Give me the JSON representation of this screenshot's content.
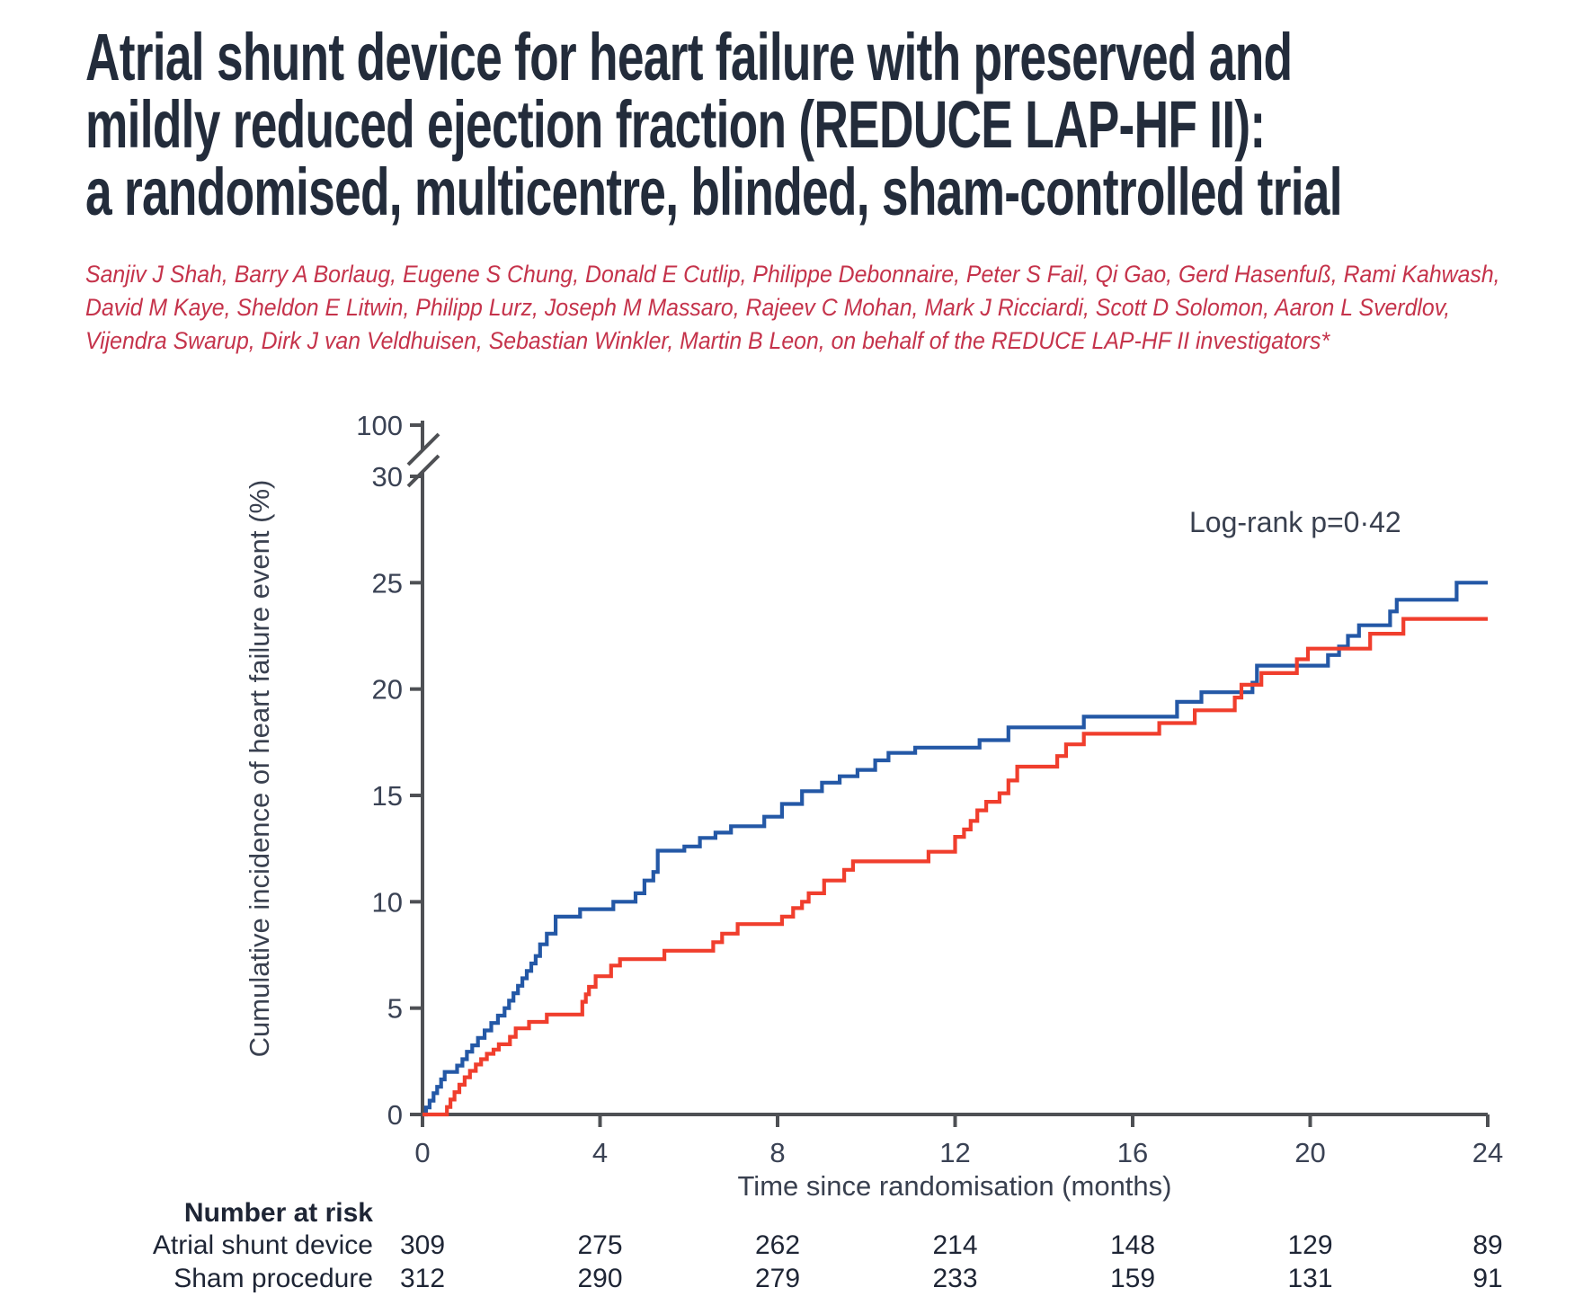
{
  "header": {
    "title_lines": [
      "Atrial shunt device for heart failure with preserved and",
      "mildly reduced ejection fraction (REDUCE LAP-HF II):",
      "a randomised, multicentre, blinded, sham-controlled trial"
    ],
    "title_color": "#232c3b",
    "authors_lines": [
      "Sanjiv J Shah, Barry A Borlaug, Eugene S Chung, Donald E Cutlip, Philippe Debonnaire, Peter S Fail, Qi Gao, Gerd Hasenfuß, Rami Kahwash,",
      "David M Kaye, Sheldon E Litwin, Philipp Lurz, Joseph M Massaro, Rajeev C Mohan, Mark J Ricciardi, Scott D Solomon, Aaron L Sverdlov,",
      "Vijendra Swarup, Dirk J van Veldhuisen, Sebastian Winkler, Martin B Leon, on behalf of the REDUCE LAP-HF II investigators*"
    ],
    "authors_color": "#c5334b"
  },
  "chart_data": {
    "type": "line",
    "subtype": "step-cumulative-incidence",
    "title": "",
    "xlabel": "Time since randomisation (months)",
    "ylabel": "Cumulative incidence of heart failure event (%)",
    "annotation": "Log-rank p=0·42",
    "x_ticks": [
      0,
      4,
      8,
      12,
      16,
      20,
      24
    ],
    "y_ticks": [
      0,
      5,
      10,
      15,
      20,
      25,
      30,
      100
    ],
    "y_axis_break_between": [
      30,
      100
    ],
    "xlim": [
      0,
      24
    ],
    "ylim_displayed": [
      0,
      30
    ],
    "grid": false,
    "legend": "none",
    "axis_color": "#4e5054",
    "series": [
      {
        "name": "Atrial shunt device",
        "color": "#2458a6",
        "points": [
          [
            0,
            0
          ],
          [
            0.08,
            0.33
          ],
          [
            0.16,
            0.65
          ],
          [
            0.25,
            1.0
          ],
          [
            0.33,
            1.3
          ],
          [
            0.42,
            1.65
          ],
          [
            0.5,
            2.0
          ],
          [
            0.78,
            2.3
          ],
          [
            0.9,
            2.6
          ],
          [
            1.0,
            2.95
          ],
          [
            1.12,
            3.25
          ],
          [
            1.25,
            3.6
          ],
          [
            1.4,
            3.95
          ],
          [
            1.55,
            4.3
          ],
          [
            1.7,
            4.65
          ],
          [
            1.85,
            5.0
          ],
          [
            1.95,
            5.35
          ],
          [
            2.05,
            5.7
          ],
          [
            2.15,
            6.05
          ],
          [
            2.25,
            6.4
          ],
          [
            2.35,
            6.75
          ],
          [
            2.45,
            7.1
          ],
          [
            2.55,
            7.45
          ],
          [
            2.65,
            8.0
          ],
          [
            2.8,
            8.5
          ],
          [
            3.0,
            9.3
          ],
          [
            3.55,
            9.65
          ],
          [
            4.3,
            10.0
          ],
          [
            4.8,
            10.4
          ],
          [
            5.0,
            11.0
          ],
          [
            5.2,
            11.4
          ],
          [
            5.3,
            12.4
          ],
          [
            5.9,
            12.6
          ],
          [
            6.25,
            13.0
          ],
          [
            6.6,
            13.25
          ],
          [
            6.95,
            13.55
          ],
          [
            7.7,
            14.0
          ],
          [
            8.1,
            14.6
          ],
          [
            8.55,
            15.2
          ],
          [
            9.0,
            15.6
          ],
          [
            9.4,
            15.9
          ],
          [
            9.8,
            16.2
          ],
          [
            10.2,
            16.65
          ],
          [
            10.5,
            17.0
          ],
          [
            11.1,
            17.25
          ],
          [
            12.55,
            17.6
          ],
          [
            13.2,
            18.2
          ],
          [
            14.9,
            18.7
          ],
          [
            17.0,
            19.4
          ],
          [
            17.55,
            19.85
          ],
          [
            18.7,
            20.3
          ],
          [
            18.8,
            21.1
          ],
          [
            20.4,
            21.6
          ],
          [
            20.65,
            22.0
          ],
          [
            20.85,
            22.5
          ],
          [
            21.1,
            23.0
          ],
          [
            21.8,
            23.65
          ],
          [
            21.95,
            24.2
          ],
          [
            23.3,
            25.0
          ],
          [
            24,
            25.0
          ]
        ]
      },
      {
        "name": "Sham procedure",
        "color": "#f03e2d",
        "points": [
          [
            0,
            0
          ],
          [
            0.55,
            0.35
          ],
          [
            0.63,
            0.7
          ],
          [
            0.72,
            1.05
          ],
          [
            0.83,
            1.4
          ],
          [
            0.95,
            1.75
          ],
          [
            1.07,
            2.05
          ],
          [
            1.2,
            2.35
          ],
          [
            1.32,
            2.6
          ],
          [
            1.45,
            2.85
          ],
          [
            1.6,
            3.05
          ],
          [
            1.72,
            3.3
          ],
          [
            1.97,
            3.65
          ],
          [
            2.1,
            4.05
          ],
          [
            2.4,
            4.35
          ],
          [
            2.8,
            4.7
          ],
          [
            3.6,
            5.3
          ],
          [
            3.68,
            5.65
          ],
          [
            3.75,
            6.0
          ],
          [
            3.9,
            6.5
          ],
          [
            4.25,
            7.0
          ],
          [
            4.45,
            7.3
          ],
          [
            5.45,
            7.7
          ],
          [
            6.55,
            8.1
          ],
          [
            6.75,
            8.5
          ],
          [
            7.1,
            8.95
          ],
          [
            8.1,
            9.3
          ],
          [
            8.35,
            9.7
          ],
          [
            8.55,
            10.0
          ],
          [
            8.7,
            10.4
          ],
          [
            9.05,
            11.0
          ],
          [
            9.5,
            11.5
          ],
          [
            9.7,
            11.9
          ],
          [
            11.4,
            12.35
          ],
          [
            12.0,
            13.05
          ],
          [
            12.2,
            13.4
          ],
          [
            12.35,
            13.8
          ],
          [
            12.5,
            14.3
          ],
          [
            12.7,
            14.7
          ],
          [
            13.0,
            15.1
          ],
          [
            13.2,
            15.7
          ],
          [
            13.4,
            16.35
          ],
          [
            14.3,
            16.85
          ],
          [
            14.5,
            17.4
          ],
          [
            14.9,
            17.9
          ],
          [
            16.6,
            18.4
          ],
          [
            17.4,
            19.0
          ],
          [
            18.3,
            19.6
          ],
          [
            18.45,
            20.2
          ],
          [
            18.9,
            20.75
          ],
          [
            19.7,
            21.4
          ],
          [
            19.95,
            21.9
          ],
          [
            21.35,
            22.6
          ],
          [
            22.1,
            23.3
          ],
          [
            24,
            23.3
          ]
        ]
      }
    ]
  },
  "risk_table": {
    "heading": "Number at risk",
    "timepoints": [
      0,
      4,
      8,
      12,
      16,
      20,
      24
    ],
    "rows": [
      {
        "label": "Atrial shunt device",
        "values": [
          "309",
          "275",
          "262",
          "214",
          "148",
          "129",
          "89"
        ]
      },
      {
        "label": "Sham procedure",
        "values": [
          "312",
          "290",
          "279",
          "233",
          "159",
          "131",
          "91"
        ]
      }
    ]
  }
}
